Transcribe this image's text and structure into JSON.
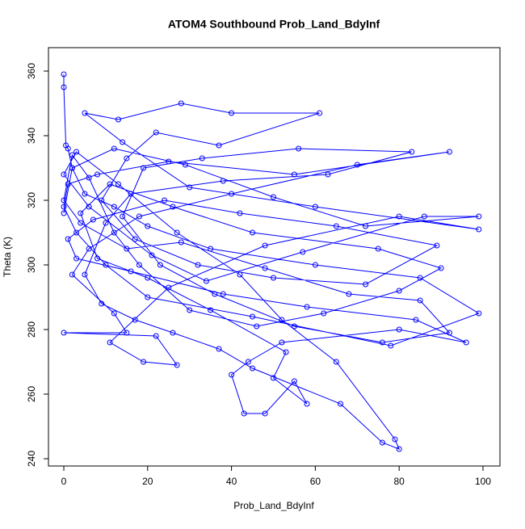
{
  "chart_data": {
    "type": "line",
    "title": "ATOM4 Southbound Prob_Land_BdyInf",
    "x_label": "Prob_Land_BdyInf",
    "y_label": "Theta (K)",
    "color": "#0000ff",
    "markers": true,
    "x": [
      0,
      0,
      0.5,
      1,
      2,
      5,
      12,
      20,
      35,
      60,
      85,
      99,
      78,
      45,
      20,
      10,
      3,
      0,
      1,
      8,
      25,
      55,
      92,
      70,
      40,
      18,
      6,
      2,
      12,
      15,
      0,
      22,
      27,
      19,
      11,
      25,
      48,
      80,
      99,
      60,
      30,
      14,
      5,
      13,
      28,
      40,
      61,
      37,
      22,
      15,
      9,
      17,
      32,
      50,
      72,
      89,
      65,
      42,
      24,
      7,
      1,
      3,
      16,
      38,
      58,
      84,
      96,
      80,
      52,
      44,
      40,
      43,
      48,
      55,
      58,
      50,
      53,
      35,
      20,
      8,
      4,
      11,
      26,
      45,
      75,
      90,
      80,
      62,
      46,
      30,
      18,
      12,
      6,
      2,
      0,
      4,
      15,
      28,
      48,
      68,
      85,
      92,
      76,
      55,
      36,
      23,
      14,
      19,
      33,
      56,
      83,
      63,
      38,
      16,
      10,
      5,
      9,
      17,
      26,
      37,
      45,
      66,
      76,
      80,
      79,
      65,
      52,
      42,
      27,
      13,
      3,
      0,
      6,
      21,
      34,
      57,
      86,
      99,
      72,
      50,
      29,
      12,
      2,
      0
    ],
    "y": [
      359,
      355,
      337,
      336,
      330,
      322,
      318,
      312,
      305,
      300,
      296,
      285,
      275,
      284,
      290,
      300,
      310,
      318,
      325,
      328,
      332,
      328,
      335,
      331,
      322,
      315,
      305,
      297,
      285,
      279,
      279,
      278,
      269,
      270,
      276,
      293,
      306,
      315,
      311,
      318,
      324,
      338,
      347,
      345,
      350,
      347,
      347,
      337,
      341,
      333,
      320,
      308,
      300,
      296,
      294,
      306,
      312,
      316,
      320,
      314,
      308,
      302,
      298,
      291,
      287,
      283,
      276,
      280,
      276,
      270,
      266,
      254,
      254,
      264,
      257,
      265,
      273,
      286,
      296,
      302,
      316,
      325,
      318,
      310,
      305,
      299,
      292,
      285,
      281,
      286,
      300,
      310,
      327,
      334,
      320,
      313,
      305,
      307,
      299,
      291,
      289,
      279,
      276,
      281,
      291,
      300,
      315,
      330,
      333,
      336,
      335,
      328,
      326,
      322,
      313,
      297,
      288,
      283,
      279,
      274,
      268,
      257,
      245,
      243,
      246,
      270,
      283,
      297,
      310,
      325,
      335,
      328,
      318,
      303,
      295,
      304,
      315,
      315,
      312,
      321,
      331,
      336,
      330,
      316
    ],
    "xlim": [
      -3.66,
      104.05
    ],
    "ylim": [
      237.75,
      367.25
    ],
    "xticks": [
      0,
      20,
      40,
      60,
      80,
      100
    ],
    "yticks": [
      240,
      260,
      280,
      300,
      320,
      340,
      360
    ]
  }
}
